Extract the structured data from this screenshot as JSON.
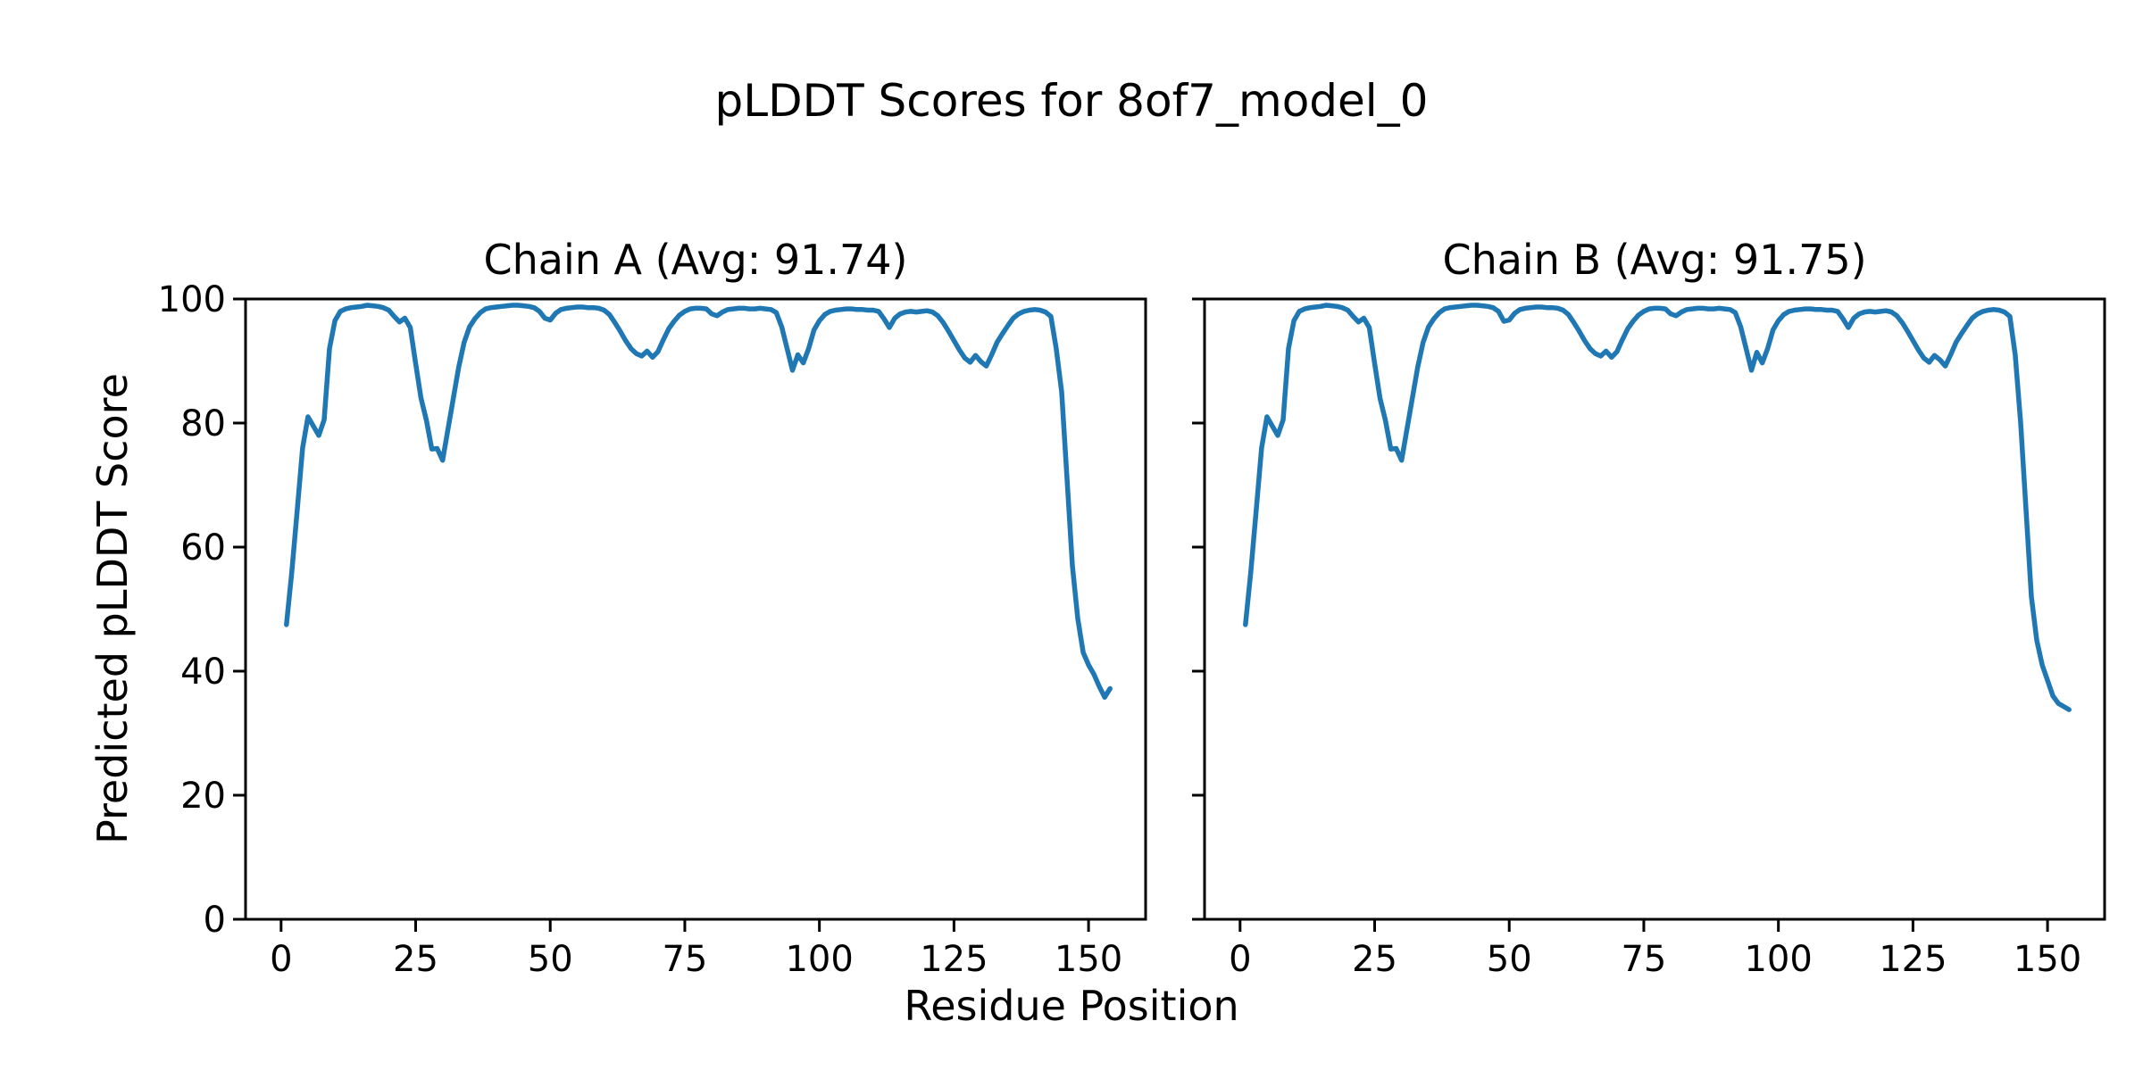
{
  "figure": {
    "title": "pLDDT Scores for 8of7_model_0",
    "background_color": "#ffffff",
    "text_color": "#000000"
  },
  "chart_data": {
    "type": "line",
    "title": "pLDDT Scores for 8of7_model_0",
    "xlabel": "Residue Position",
    "ylabel": "Predicted pLDDT Score",
    "line_color": "#1f77b4",
    "spine_color": "#000000",
    "grid": false,
    "legend": "none",
    "xlim": [
      -6.6,
      160.6
    ],
    "ylim": [
      0,
      100
    ],
    "x_ticks": [
      0,
      25,
      50,
      75,
      100,
      125,
      150
    ],
    "y_ticks": [
      0,
      20,
      40,
      60,
      80,
      100
    ],
    "x_start": 1,
    "subplots": [
      {
        "chain": "A",
        "avg": 91.74,
        "title": "Chain A (Avg: 91.74)",
        "values": [
          47.5,
          56,
          66,
          76,
          81,
          79.5,
          78,
          80.5,
          92,
          96.5,
          98,
          98.4,
          98.6,
          98.7,
          98.8,
          99,
          98.9,
          98.8,
          98.6,
          98.2,
          97.2,
          96.3,
          96.9,
          95.4,
          89.6,
          84,
          80.4,
          75.8,
          75.9,
          74,
          79,
          84,
          89,
          93,
          95.5,
          96.8,
          97.8,
          98.4,
          98.6,
          98.7,
          98.8,
          98.9,
          99,
          99,
          98.9,
          98.8,
          98.6,
          98,
          96.9,
          96.6,
          97.7,
          98.3,
          98.5,
          98.6,
          98.7,
          98.7,
          98.6,
          98.6,
          98.5,
          98.2,
          97.5,
          96.2,
          94.8,
          93.3,
          92,
          91.2,
          90.8,
          91.6,
          90.6,
          91.5,
          93.4,
          95.2,
          96.4,
          97.4,
          98,
          98.4,
          98.5,
          98.5,
          98.4,
          97.6,
          97.3,
          97.9,
          98.3,
          98.4,
          98.5,
          98.5,
          98.4,
          98.4,
          98.5,
          98.4,
          98.3,
          97.8,
          95.5,
          92,
          88.5,
          91,
          89.7,
          92,
          95,
          96.5,
          97.5,
          98,
          98.2,
          98.3,
          98.4,
          98.4,
          98.3,
          98.3,
          98.2,
          98.2,
          98,
          96.8,
          95.4,
          96.9,
          97.6,
          97.9,
          98,
          97.9,
          98,
          98.1,
          97.9,
          97.3,
          96.2,
          94.8,
          93.3,
          91.8,
          90.5,
          89.8,
          90.9,
          89.9,
          89.2,
          91,
          93,
          94.4,
          95.7,
          96.9,
          97.6,
          98,
          98.2,
          98.3,
          98.2,
          97.9,
          97.2,
          92,
          85,
          71,
          57,
          48.5,
          43,
          41,
          39.5,
          37.5,
          35.8,
          37.2
        ]
      },
      {
        "chain": "B",
        "avg": 91.75,
        "title": "Chain B (Avg: 91.75)",
        "values": [
          47.5,
          56,
          66,
          76,
          81,
          79.5,
          78,
          80.5,
          92,
          96.5,
          98,
          98.4,
          98.6,
          98.7,
          98.8,
          99,
          98.9,
          98.8,
          98.6,
          98.2,
          97.2,
          96.3,
          96.9,
          95.4,
          89.6,
          84,
          80.4,
          75.8,
          75.9,
          74,
          79,
          84,
          89,
          93,
          95.5,
          96.8,
          97.8,
          98.4,
          98.6,
          98.7,
          98.8,
          98.9,
          99,
          99,
          98.9,
          98.8,
          98.6,
          98,
          96.4,
          96.6,
          97.7,
          98.3,
          98.5,
          98.6,
          98.7,
          98.7,
          98.6,
          98.6,
          98.5,
          98.2,
          97.5,
          96.2,
          94.8,
          93.3,
          92,
          91.2,
          90.8,
          91.6,
          90.6,
          91.5,
          93.4,
          95.2,
          96.4,
          97.4,
          98,
          98.4,
          98.5,
          98.5,
          98.4,
          97.6,
          97.3,
          97.9,
          98.3,
          98.4,
          98.5,
          98.5,
          98.4,
          98.4,
          98.5,
          98.4,
          98.3,
          97.8,
          95.5,
          92,
          88.5,
          91.4,
          89.7,
          92,
          95,
          96.5,
          97.5,
          98,
          98.2,
          98.3,
          98.4,
          98.4,
          98.3,
          98.3,
          98.2,
          98.2,
          98,
          96.8,
          95.4,
          96.9,
          97.6,
          97.9,
          98,
          97.9,
          98,
          98.1,
          97.9,
          97.3,
          96.2,
          94.8,
          93.3,
          91.8,
          90.5,
          89.8,
          90.9,
          90.2,
          89.2,
          91,
          93,
          94.4,
          95.7,
          96.9,
          97.6,
          98,
          98.2,
          98.3,
          98.2,
          97.9,
          97.2,
          91,
          80,
          66,
          52,
          45,
          41,
          38.5,
          36,
          34.8,
          34.3,
          33.8
        ]
      }
    ]
  }
}
